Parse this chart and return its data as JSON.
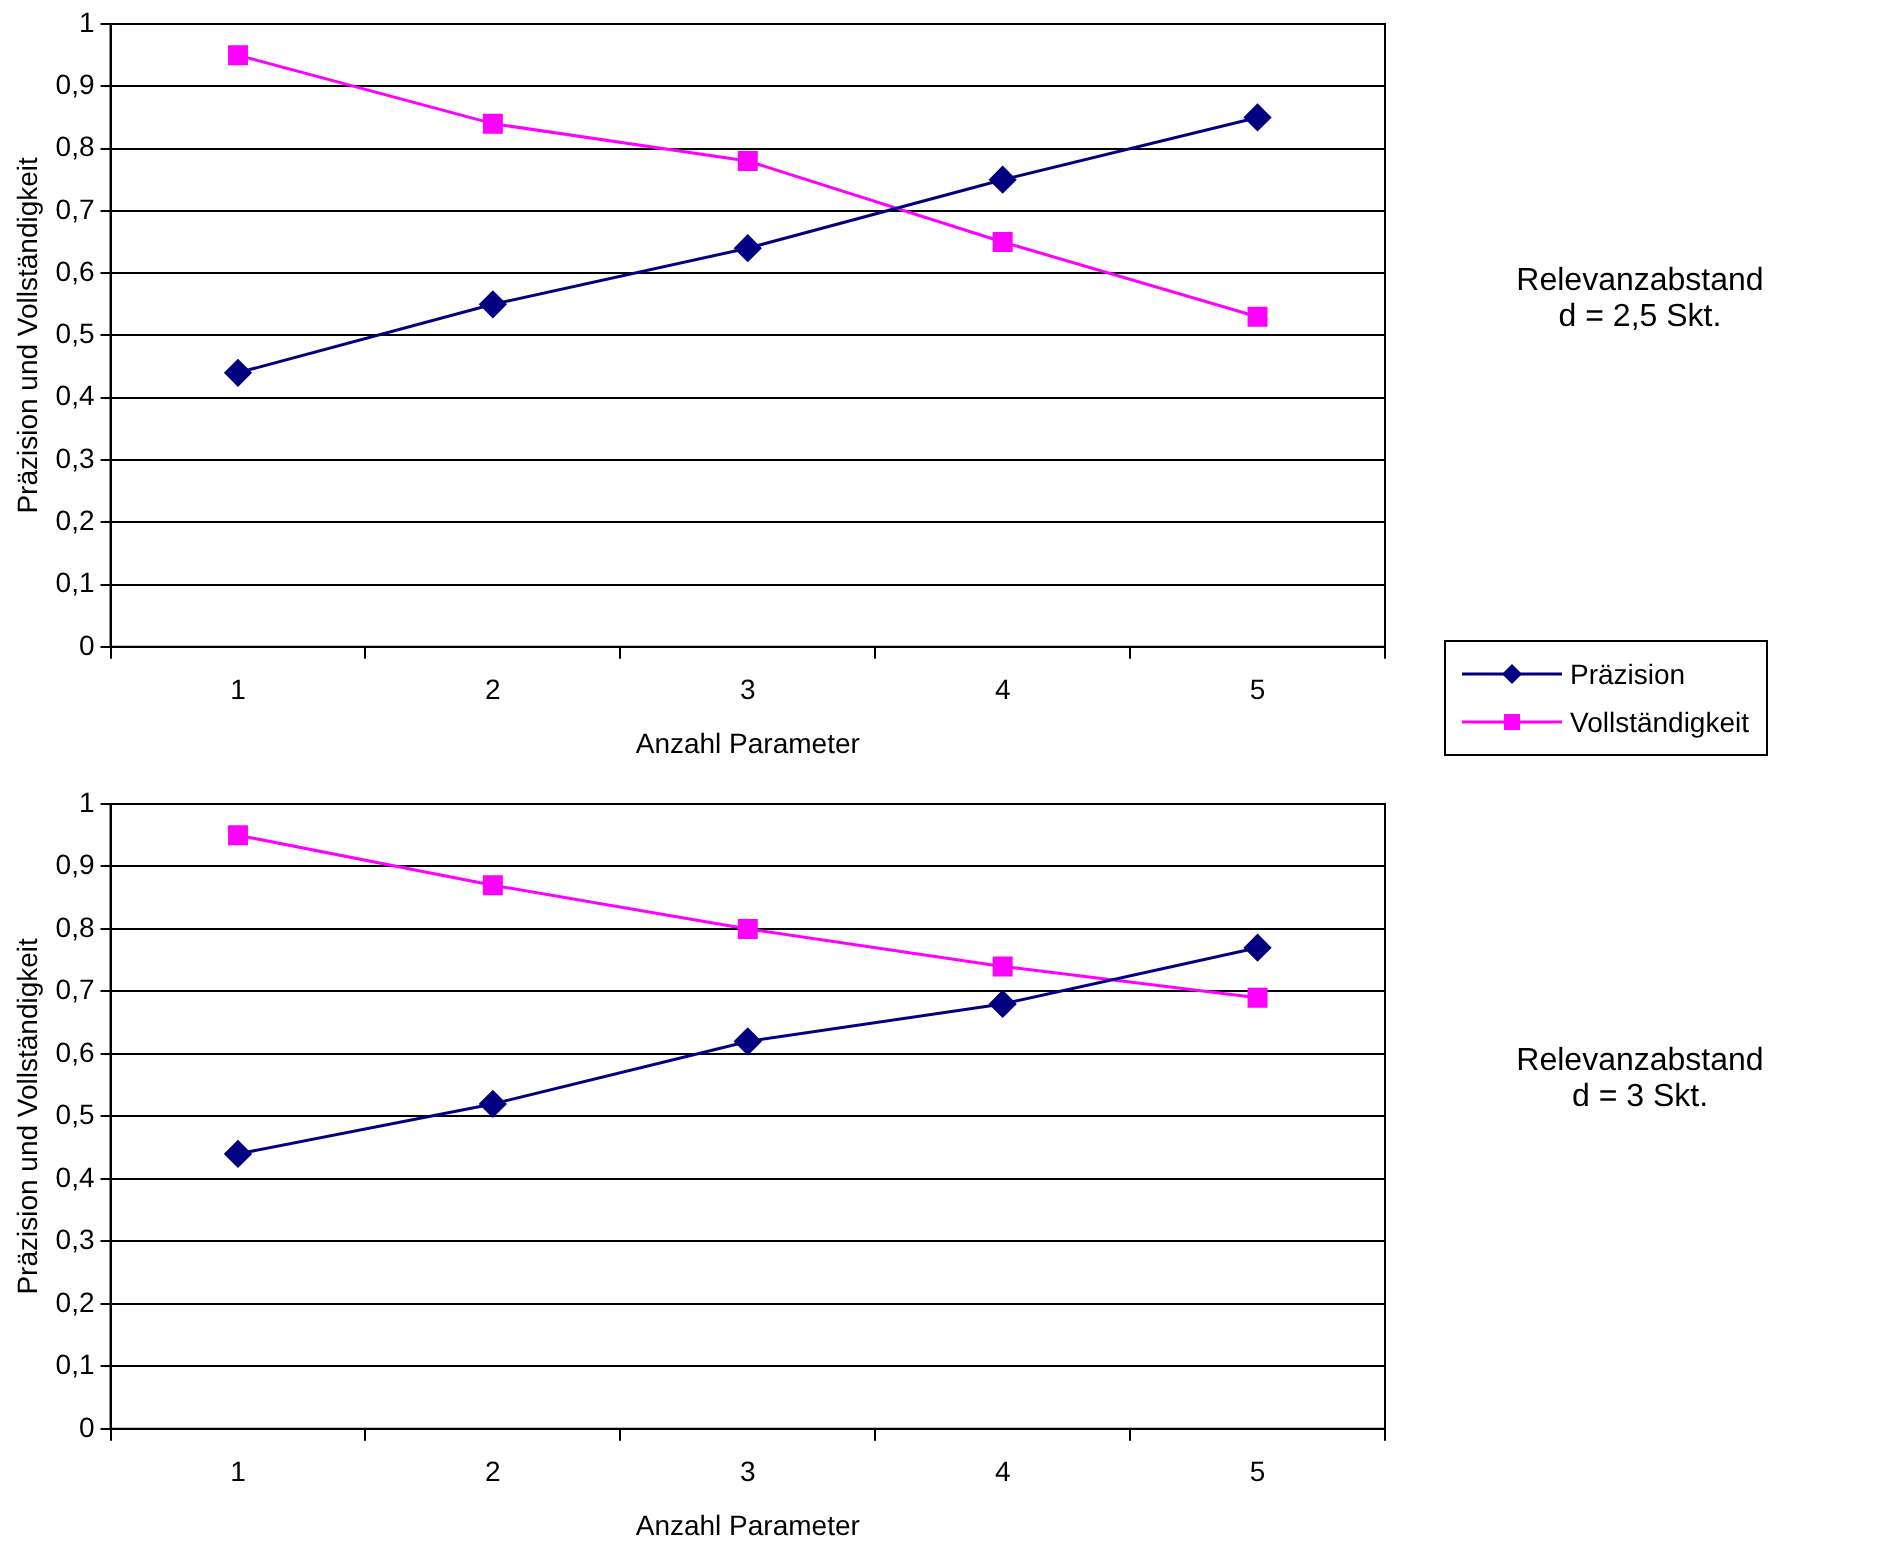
{
  "chart_data": [
    {
      "type": "line",
      "xlabel": "Anzahl Parameter",
      "ylabel": "Präzision und Vollständigkeit",
      "categories": [
        "1",
        "2",
        "3",
        "4",
        "5"
      ],
      "ylim": [
        0,
        1
      ],
      "yticks": [
        {
          "value": 0,
          "label": "0"
        },
        {
          "value": 0.1,
          "label": "0,1"
        },
        {
          "value": 0.2,
          "label": "0,2"
        },
        {
          "value": 0.3,
          "label": "0,3"
        },
        {
          "value": 0.4,
          "label": "0,4"
        },
        {
          "value": 0.5,
          "label": "0,5"
        },
        {
          "value": 0.6,
          "label": "0,6"
        },
        {
          "value": 0.7,
          "label": "0,7"
        },
        {
          "value": 0.8,
          "label": "0,8"
        },
        {
          "value": 0.9,
          "label": "0,9"
        },
        {
          "value": 1,
          "label": "1"
        }
      ],
      "grid": "y",
      "legend": "bottom right",
      "annotations": [
        "Relevanzabstand\nd = 2,5 Skt."
      ],
      "series": [
        {
          "name": "Präzision",
          "color": "#000080",
          "marker": "diamond",
          "values": [
            0.44,
            0.55,
            0.64,
            0.75,
            0.85
          ]
        },
        {
          "name": "Vollständigkeit",
          "color": "#ff00ff",
          "marker": "square",
          "values": [
            0.95,
            0.84,
            0.78,
            0.65,
            0.53
          ]
        }
      ]
    },
    {
      "type": "line",
      "xlabel": "Anzahl Parameter",
      "ylabel": "Präzision und Vollständigkeit",
      "categories": [
        "1",
        "2",
        "3",
        "4",
        "5"
      ],
      "ylim": [
        0,
        1
      ],
      "yticks": [
        {
          "value": 0,
          "label": "0"
        },
        {
          "value": 0.1,
          "label": "0,1"
        },
        {
          "value": 0.2,
          "label": "0,2"
        },
        {
          "value": 0.3,
          "label": "0,3"
        },
        {
          "value": 0.4,
          "label": "0,4"
        },
        {
          "value": 0.5,
          "label": "0,5"
        },
        {
          "value": 0.6,
          "label": "0,6"
        },
        {
          "value": 0.7,
          "label": "0,7"
        },
        {
          "value": 0.8,
          "label": "0,8"
        },
        {
          "value": 0.9,
          "label": "0,9"
        },
        {
          "value": 1,
          "label": "1"
        }
      ],
      "grid": "y",
      "annotations": [
        "Relevanzabstand\nd = 3 Skt."
      ],
      "series": [
        {
          "color": "#000080",
          "marker": "diamond",
          "values": [
            0.44,
            0.52,
            0.62,
            0.68,
            0.77
          ]
        },
        {
          "color": "#ff00ff",
          "marker": "square",
          "values": [
            0.95,
            0.87,
            0.8,
            0.74,
            0.69
          ]
        }
      ]
    }
  ]
}
